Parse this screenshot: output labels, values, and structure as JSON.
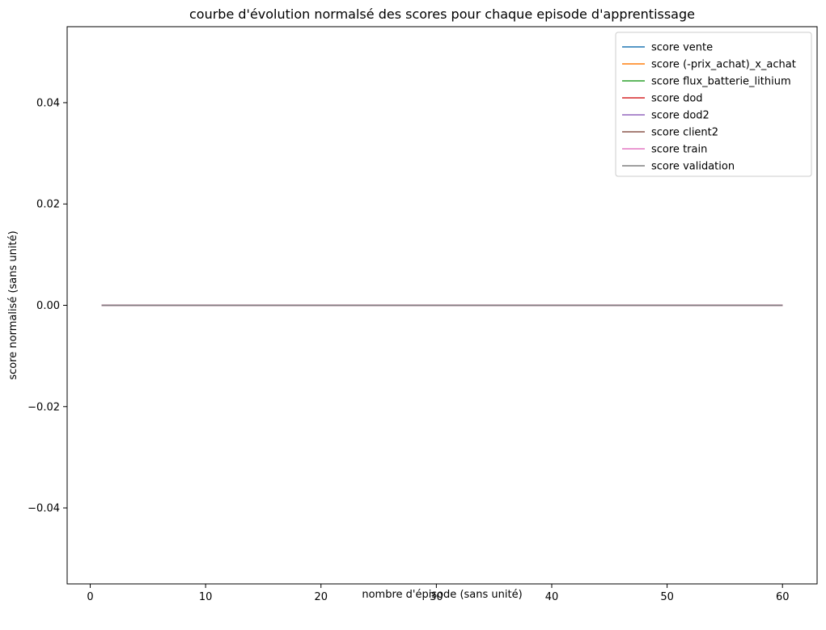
{
  "chart_data": {
    "type": "line",
    "title": "courbe d'évolution normalsé des scores pour chaque episode d'apprentissage",
    "xlabel": "nombre d'épisode (sans unité)",
    "ylabel": "score normalisé (sans unité)",
    "xlim": [
      -2,
      63
    ],
    "ylim": [
      -0.055,
      0.055
    ],
    "x_ticks": [
      0,
      10,
      20,
      30,
      40,
      50,
      60
    ],
    "x_tick_labels": [
      "0",
      "10",
      "20",
      "30",
      "40",
      "50",
      "60"
    ],
    "y_ticks": [
      -0.04,
      -0.02,
      0.0,
      0.02,
      0.04
    ],
    "y_tick_labels": [
      "−0.04",
      "−0.02",
      "0.00",
      "0.02",
      "0.04"
    ],
    "x": [
      1,
      60
    ],
    "grid": false,
    "legend_position": "top-right",
    "series": [
      {
        "name": "score vente",
        "color": "#1f77b4",
        "values": [
          0,
          0
        ]
      },
      {
        "name": "score (-prix_achat)_x_achat",
        "color": "#ff7f0e",
        "values": [
          0,
          0
        ]
      },
      {
        "name": "score flux_batterie_lithium",
        "color": "#2ca02c",
        "values": [
          0,
          0
        ]
      },
      {
        "name": "score dod",
        "color": "#d62728",
        "values": [
          0,
          0
        ]
      },
      {
        "name": "score dod2",
        "color": "#9467bd",
        "values": [
          0,
          0
        ]
      },
      {
        "name": "score client2",
        "color": "#8c564b",
        "values": [
          0,
          0
        ]
      },
      {
        "name": "score train",
        "color": "#e377c2",
        "values": [
          0,
          0
        ]
      },
      {
        "name": "score validation",
        "color": "#7f7f7f",
        "values": [
          0,
          0
        ]
      }
    ]
  }
}
